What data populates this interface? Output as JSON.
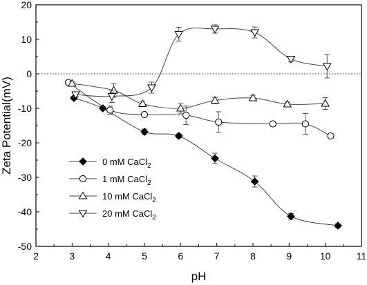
{
  "chart_data": {
    "type": "line",
    "xlabel": "pH",
    "ylabel": "Zeta Potential(mV)",
    "xlim": [
      2,
      11
    ],
    "ylim": [
      -50,
      20
    ],
    "xticks": [
      2,
      3,
      4,
      5,
      6,
      7,
      8,
      9,
      10,
      11
    ],
    "yticks": [
      20,
      10,
      0,
      -10,
      -20,
      -30,
      -40,
      -50
    ],
    "reference_line": {
      "y": 0,
      "style": "dotted"
    },
    "legend_position": "lower-left",
    "grid": false,
    "series": [
      {
        "name": "0 mM CaCl2",
        "legend": {
          "base": "0 mM CaCl",
          "sub": "2"
        },
        "marker": "diamond-filled",
        "x": [
          3.05,
          3.85,
          5.0,
          5.95,
          6.95,
          8.05,
          9.05,
          10.35
        ],
        "y": [
          -7,
          -10,
          -16.8,
          -18,
          -24.5,
          -31.2,
          -41.3,
          -44
        ],
        "err": [
          0.5,
          0.5,
          0.8,
          0.6,
          1.5,
          1.6,
          0.8,
          0.5
        ]
      },
      {
        "name": "1 mM CaCl2",
        "legend": {
          "base": "1 mM CaCl",
          "sub": "2"
        },
        "marker": "circle-open",
        "x": [
          2.9,
          4.05,
          5.0,
          6.15,
          7.05,
          8.55,
          9.45,
          10.15
        ],
        "y": [
          -2.5,
          -10.5,
          -11.8,
          -12,
          -14,
          -14.5,
          -14.5,
          -18
        ],
        "err": [
          0.5,
          1.2,
          0.6,
          2.7,
          3.0,
          0.6,
          3.0,
          0.6
        ]
      },
      {
        "name": "10 mM CaCl2",
        "legend": {
          "base": "10 mM CaCl",
          "sub": "2"
        },
        "marker": "triangle-up-open",
        "x": [
          3.0,
          4.15,
          4.95,
          6.0,
          6.95,
          8.0,
          8.95,
          10.0
        ],
        "y": [
          -2.8,
          -4.8,
          -8.7,
          -10,
          -7.7,
          -7,
          -8.8,
          -8.6
        ],
        "err": [
          0.5,
          2.0,
          0.7,
          1.4,
          0.9,
          0.8,
          0.6,
          1.7
        ]
      },
      {
        "name": "20 mM CaCl2",
        "legend": {
          "base": "20 mM CaCl",
          "sub": "2"
        },
        "marker": "triangle-down-open",
        "x": [
          3.1,
          4.1,
          5.2,
          5.95,
          6.95,
          8.05,
          9.05,
          10.05
        ],
        "y": [
          -6,
          -6.5,
          -4,
          11.5,
          13,
          12,
          4.3,
          2.2
        ],
        "err": [
          0.5,
          1.8,
          1.6,
          2.0,
          1.2,
          1.6,
          0.8,
          3.4
        ]
      }
    ]
  }
}
